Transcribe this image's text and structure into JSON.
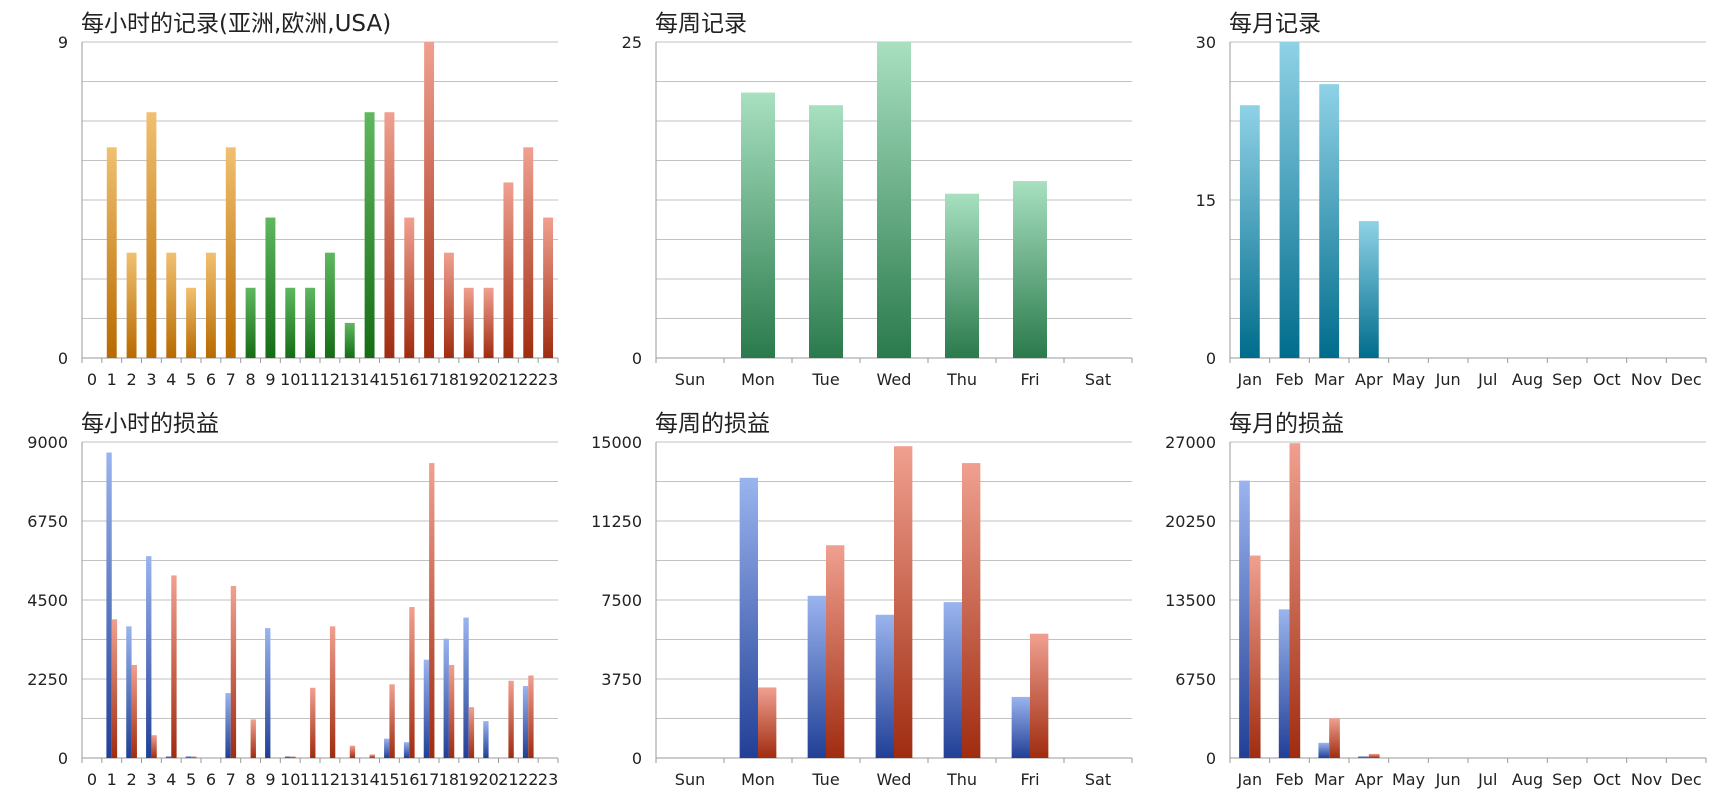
{
  "colors": {
    "orange": [
      "#f0c070",
      "#b86a00"
    ],
    "green": [
      "#5fb85f",
      "#156c15"
    ],
    "red": [
      "#f0a090",
      "#a02c10"
    ],
    "teal": [
      "#a8e0c0",
      "#2a7a4c"
    ],
    "cyan": [
      "#8fd2e6",
      "#006c8c"
    ],
    "blue": [
      "#9ab4ee",
      "#213f96"
    ],
    "grid": "#c2c2c2",
    "axis": "#9a9a9a"
  },
  "chart_data": [
    {
      "type": "bar",
      "title": "每小时的记录(亚洲,欧洲,USA)",
      "categories": [
        "0",
        "1",
        "2",
        "3",
        "4",
        "5",
        "6",
        "7",
        "8",
        "9",
        "10",
        "11",
        "12",
        "13",
        "14",
        "15",
        "16",
        "17",
        "18",
        "19",
        "20",
        "21",
        "22",
        "23"
      ],
      "values": [
        0,
        6,
        3,
        7,
        3,
        2,
        3,
        6,
        2,
        4,
        2,
        2,
        3,
        1,
        7,
        7,
        4,
        9,
        3,
        2,
        2,
        5,
        6,
        4
      ],
      "bar_colors": [
        "orange",
        "orange",
        "orange",
        "orange",
        "orange",
        "orange",
        "orange",
        "orange",
        "green",
        "green",
        "green",
        "green",
        "green",
        "green",
        "green",
        "red",
        "red",
        "red",
        "red",
        "red",
        "red",
        "red",
        "red",
        "red"
      ],
      "ylim": [
        0,
        9
      ],
      "yticks": [
        0,
        9
      ],
      "grid": true,
      "legend": "none"
    },
    {
      "type": "bar",
      "title": "每周记录",
      "categories": [
        "Sun",
        "Mon",
        "Tue",
        "Wed",
        "Thu",
        "Fri",
        "Sat"
      ],
      "values": [
        0,
        21,
        20,
        25,
        13,
        14,
        0
      ],
      "bar_colors": [
        "teal",
        "teal",
        "teal",
        "teal",
        "teal",
        "teal",
        "teal"
      ],
      "ylim": [
        0,
        25
      ],
      "yticks": [
        0,
        25
      ],
      "grid": true,
      "legend": "none"
    },
    {
      "type": "bar",
      "title": "每月记录",
      "categories": [
        "Jan",
        "Feb",
        "Mar",
        "Apr",
        "May",
        "Jun",
        "Jul",
        "Aug",
        "Sep",
        "Oct",
        "Nov",
        "Dec"
      ],
      "values": [
        24,
        30,
        26,
        13,
        0,
        0,
        0,
        0,
        0,
        0,
        0,
        0
      ],
      "bar_colors": [
        "cyan",
        "cyan",
        "cyan",
        "cyan",
        "cyan",
        "cyan",
        "cyan",
        "cyan",
        "cyan",
        "cyan",
        "cyan",
        "cyan"
      ],
      "ylim": [
        0,
        30
      ],
      "yticks": [
        0,
        15,
        30
      ],
      "grid": true,
      "legend": "none"
    },
    {
      "type": "bar",
      "title": "每小时的损益",
      "categories": [
        "0",
        "1",
        "2",
        "3",
        "4",
        "5",
        "6",
        "7",
        "8",
        "9",
        "10",
        "11",
        "12",
        "13",
        "14",
        "15",
        "16",
        "17",
        "18",
        "19",
        "20",
        "21",
        "22",
        "23"
      ],
      "series": [
        {
          "color": "blue",
          "values": [
            0,
            8700,
            3750,
            5750,
            50,
            50,
            0,
            1850,
            0,
            3700,
            50,
            0,
            0,
            0,
            0,
            550,
            450,
            2800,
            3400,
            4000,
            1050,
            0,
            2050,
            0
          ]
        },
        {
          "color": "red",
          "values": [
            0,
            3950,
            2650,
            650,
            5200,
            30,
            0,
            4900,
            1100,
            0,
            20,
            2000,
            3750,
            350,
            100,
            2100,
            4300,
            8400,
            2650,
            1450,
            0,
            2200,
            2350,
            0
          ]
        }
      ],
      "ylim": [
        0,
        9000
      ],
      "yticks": [
        0,
        2250,
        4500,
        6750,
        9000
      ],
      "grid": true,
      "legend": "none"
    },
    {
      "type": "bar",
      "title": "每周的损益",
      "categories": [
        "Sun",
        "Mon",
        "Tue",
        "Wed",
        "Thu",
        "Fri",
        "Sat"
      ],
      "series": [
        {
          "color": "blue",
          "values": [
            0,
            13300,
            7700,
            6800,
            7400,
            2900,
            0
          ]
        },
        {
          "color": "red",
          "values": [
            0,
            3350,
            10100,
            14800,
            14000,
            5900,
            0
          ]
        }
      ],
      "ylim": [
        0,
        15000
      ],
      "yticks": [
        0,
        3750,
        7500,
        11250,
        15000
      ],
      "grid": true,
      "legend": "none"
    },
    {
      "type": "bar",
      "title": "每月的损益",
      "categories": [
        "Jan",
        "Feb",
        "Mar",
        "Apr",
        "May",
        "Jun",
        "Jul",
        "Aug",
        "Sep",
        "Oct",
        "Nov",
        "Dec"
      ],
      "series": [
        {
          "color": "blue",
          "values": [
            23700,
            12700,
            1300,
            150,
            0,
            0,
            0,
            0,
            0,
            0,
            0,
            0
          ]
        },
        {
          "color": "red",
          "values": [
            17300,
            26900,
            3400,
            350,
            0,
            0,
            0,
            0,
            0,
            0,
            0,
            0
          ]
        }
      ],
      "ylim": [
        0,
        27000
      ],
      "yticks": [
        0,
        6750,
        13500,
        20250,
        27000
      ],
      "grid": true,
      "legend": "none"
    }
  ]
}
